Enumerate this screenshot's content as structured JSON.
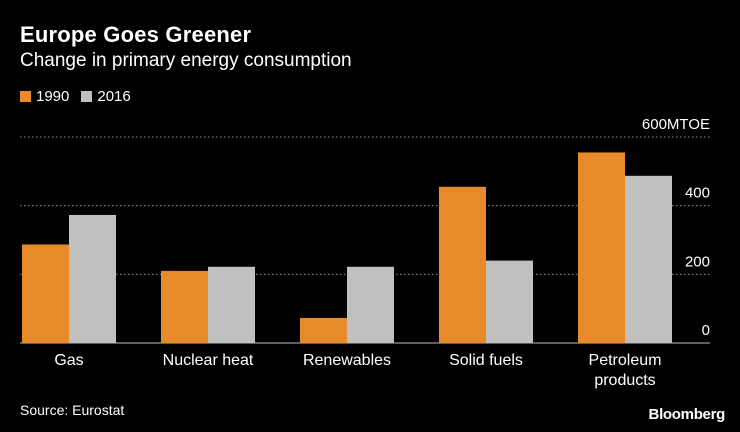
{
  "chart_data": {
    "type": "bar",
    "title": "Europe Goes Greener",
    "subtitle": "Change in primary energy consumption",
    "categories": [
      "Gas",
      "Nuclear heat",
      "Renewables",
      "Solid fuels",
      "Petroleum\nproducts"
    ],
    "series": [
      {
        "name": "1990",
        "values": [
          287,
          210,
          73,
          455,
          555
        ],
        "color": "#e8892a"
      },
      {
        "name": "2016",
        "values": [
          373,
          222,
          222,
          240,
          487
        ],
        "color": "#c0c0c0"
      }
    ],
    "y_unit": "MTOE",
    "ylim": [
      0,
      600
    ],
    "yticks": [
      0,
      200,
      400,
      600
    ],
    "ytick_labels": [
      "0",
      "200",
      "400",
      "600MTOE"
    ],
    "grid": true,
    "legend": "top-left"
  },
  "footer": {
    "source": "Source: Eurostat",
    "brand": "Bloomberg"
  },
  "colors": {
    "background": "#000000",
    "gridline": "#8a8a8a",
    "text": "#ffffff"
  }
}
